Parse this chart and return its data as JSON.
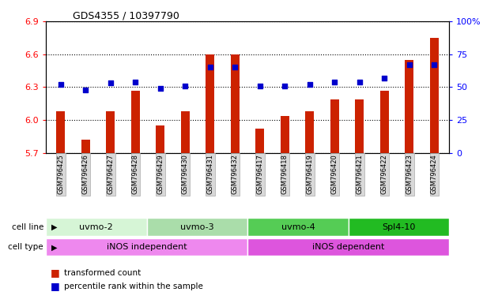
{
  "title": "GDS4355 / 10397790",
  "samples": [
    "GSM796425",
    "GSM796426",
    "GSM796427",
    "GSM796428",
    "GSM796429",
    "GSM796430",
    "GSM796431",
    "GSM796432",
    "GSM796417",
    "GSM796418",
    "GSM796419",
    "GSM796420",
    "GSM796421",
    "GSM796422",
    "GSM796423",
    "GSM796424"
  ],
  "transformed_count": [
    6.08,
    5.82,
    6.08,
    6.27,
    5.95,
    6.08,
    6.6,
    6.6,
    5.92,
    6.04,
    6.08,
    6.19,
    6.19,
    6.27,
    6.55,
    6.75
  ],
  "percentile_rank": [
    52,
    48,
    53,
    54,
    49,
    51,
    65,
    65,
    51,
    51,
    52,
    54,
    54,
    57,
    67,
    67
  ],
  "ylim_left": [
    5.7,
    6.9
  ],
  "ylim_right": [
    0,
    100
  ],
  "yticks_left": [
    5.7,
    6.0,
    6.3,
    6.6,
    6.9
  ],
  "yticks_right": [
    0,
    25,
    50,
    75,
    100
  ],
  "bar_color": "#cc2200",
  "dot_color": "#0000cc",
  "cell_lines": [
    {
      "label": "uvmo-2",
      "start": 0,
      "end": 4,
      "color": "#d6f5d6"
    },
    {
      "label": "uvmo-3",
      "start": 4,
      "end": 8,
      "color": "#aaddaa"
    },
    {
      "label": "uvmo-4",
      "start": 8,
      "end": 12,
      "color": "#55cc55"
    },
    {
      "label": "Spl4-10",
      "start": 12,
      "end": 16,
      "color": "#22bb22"
    }
  ],
  "cell_types": [
    {
      "label": "iNOS independent",
      "start": 0,
      "end": 8,
      "color": "#ee88ee"
    },
    {
      "label": "iNOS dependent",
      "start": 8,
      "end": 16,
      "color": "#ee88ee"
    }
  ],
  "legend_items": [
    {
      "color": "#cc2200",
      "label": "transformed count"
    },
    {
      "color": "#0000cc",
      "label": "percentile rank within the sample"
    }
  ]
}
